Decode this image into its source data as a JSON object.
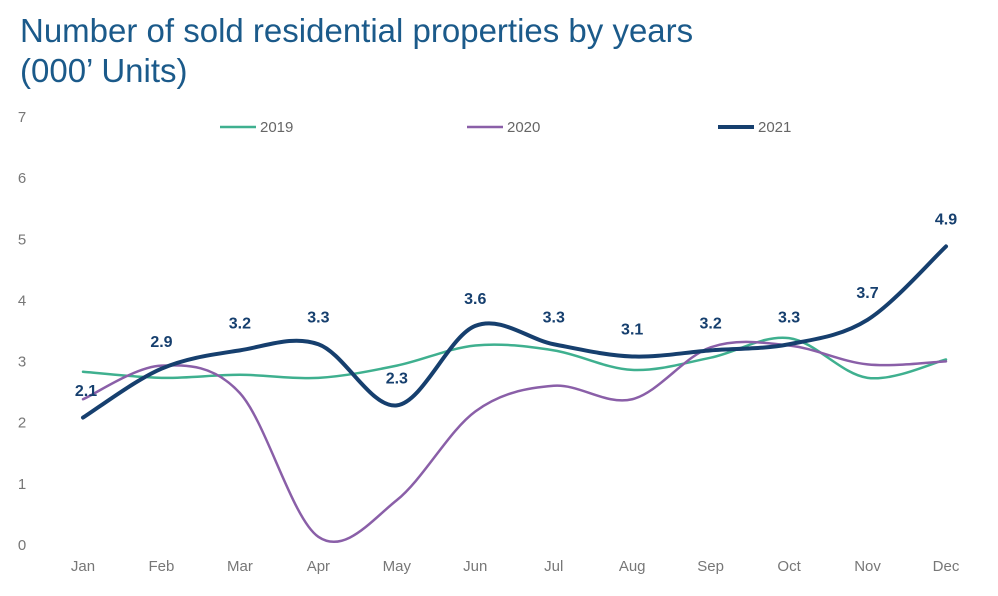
{
  "chart_data": {
    "type": "line",
    "title": "Number of sold residential properties by years",
    "subtitle": "(000’ Units)",
    "categories": [
      "Jan",
      "Feb",
      "Mar",
      "Apr",
      "May",
      "Jun",
      "Jul",
      "Aug",
      "Sep",
      "Oct",
      "Nov",
      "Dec"
    ],
    "series": [
      {
        "name": "2019",
        "color": "#3fb08f",
        "values": [
          2.85,
          2.75,
          2.8,
          2.75,
          2.95,
          3.28,
          3.2,
          2.88,
          3.08,
          3.4,
          2.75,
          3.05
        ]
      },
      {
        "name": "2020",
        "color": "#8a5fa8",
        "values": [
          2.4,
          2.95,
          2.5,
          0.15,
          0.75,
          2.2,
          2.62,
          2.4,
          3.25,
          3.28,
          2.97,
          3.02
        ]
      },
      {
        "name": "2021",
        "color": "#163f6e",
        "values": [
          2.1,
          2.9,
          3.2,
          3.3,
          2.3,
          3.6,
          3.3,
          3.1,
          3.2,
          3.3,
          3.7,
          4.9
        ],
        "show_labels": true
      }
    ],
    "ylim": [
      0,
      7
    ],
    "yticks": [
      0,
      1,
      2,
      3,
      4,
      5,
      6,
      7
    ],
    "grid": false,
    "legend": "top",
    "smooth": true
  }
}
